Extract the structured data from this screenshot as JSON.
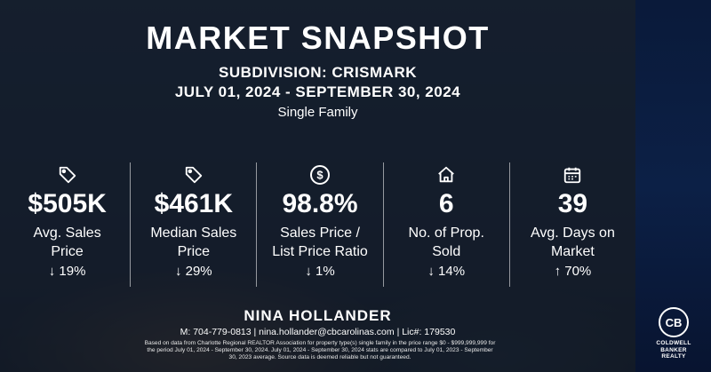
{
  "header": {
    "title": "MARKET SNAPSHOT",
    "subdivision": "SUBDIVISION: CRISMARK",
    "dates": "JULY 01, 2024 - SEPTEMBER 30, 2024",
    "property_type": "Single Family"
  },
  "stats": [
    {
      "icon": "price-tag-icon",
      "value": "$505K",
      "label": "Avg. Sales\nPrice",
      "change": "↓ 19%"
    },
    {
      "icon": "price-tag-icon",
      "value": "$461K",
      "label": "Median Sales\nPrice",
      "change": "↓ 29%"
    },
    {
      "icon": "dollar-circle-icon",
      "value": "98.8%",
      "label": "Sales Price /\nList Price Ratio",
      "change": "↓ 1%"
    },
    {
      "icon": "house-icon",
      "value": "6",
      "label": "No. of Prop.\nSold",
      "change": "↓ 14%"
    },
    {
      "icon": "calendar-icon",
      "value": "39",
      "label": "Avg. Days on\nMarket",
      "change": "↑ 70%"
    }
  ],
  "footer": {
    "agent_name": "NINA HOLLANDER",
    "contact": "M: 704-779-0813 | nina.hollander@cbcarolinas.com | Lic#: 179530",
    "disclaimer": "Based on data from Charlotte Regional REALTOR Association for property type(s) single family in the price range $0 - $999,999,999 for the period July 01, 2024 - September 30, 2024. July 01, 2024 - September 30, 2024 stats are compared to July 01, 2023 - September 30, 2023 average. Source data is deemed reliable but not guaranteed."
  },
  "logo": {
    "mark": "CB",
    "line1": "COLDWELL",
    "line2": "BANKER",
    "line3": "REALTY"
  }
}
